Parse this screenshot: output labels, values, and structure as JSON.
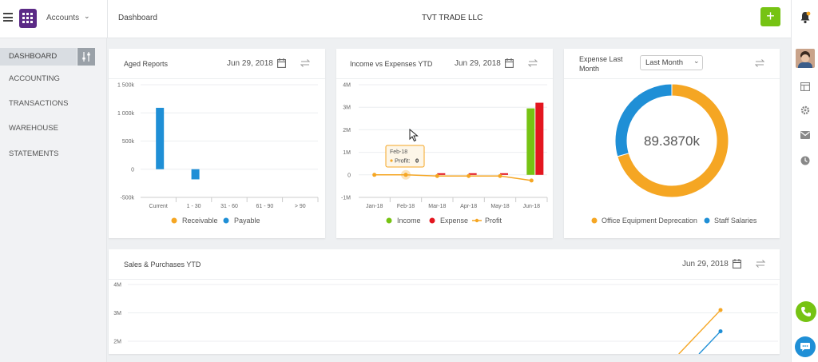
{
  "topbar": {
    "app_label": "Accounts",
    "breadcrumb": "Dashboard",
    "company": "TVT TRADE LLC",
    "add_label": "+"
  },
  "sidebar": {
    "items": [
      {
        "label": "DASHBOARD"
      },
      {
        "label": "ACCOUNTING"
      },
      {
        "label": "TRANSACTIONS"
      },
      {
        "label": "WAREHOUSE"
      },
      {
        "label": "STATEMENTS"
      }
    ]
  },
  "cards": {
    "aged": {
      "title": "Aged Reports",
      "date": "Jun 29, 2018"
    },
    "income": {
      "title": "Income vs Expenses YTD",
      "date": "Jun 29, 2018"
    },
    "expense": {
      "title_line1": "Expense Last",
      "title_line2": "Month",
      "select": "Last Month"
    },
    "sales": {
      "title": "Sales & Purchases YTD",
      "date": "Jun 29, 2018"
    }
  },
  "colors": {
    "orange": "#f5a623",
    "blue": "#1f8fd6",
    "green": "#76c313",
    "red": "#e3161f"
  },
  "chart_data": [
    {
      "type": "bar",
      "categories": [
        "Current",
        "1 - 30",
        "31 - 60",
        "61 - 90",
        "> 90"
      ],
      "yticks": [
        "1 500k",
        "1 000k",
        "500k",
        "0",
        "-500k"
      ],
      "ylim": [
        -500000,
        1500000
      ],
      "series": [
        {
          "name": "Receivable",
          "color": "#f5a623",
          "values": [
            0,
            0,
            0,
            0,
            0
          ]
        },
        {
          "name": "Payable",
          "color": "#1f8fd6",
          "values": [
            1090000,
            -180000,
            0,
            0,
            0
          ]
        }
      ],
      "legend": "bottom"
    },
    {
      "type": "bar",
      "categories": [
        "Jan-18",
        "Feb-18",
        "Mar-18",
        "Apr-18",
        "May-18",
        "Jun-18"
      ],
      "yticks": [
        "4M",
        "3M",
        "2M",
        "1M",
        "0",
        "-1M"
      ],
      "ylim": [
        -1000000,
        4000000
      ],
      "series": [
        {
          "name": "Income",
          "color": "#76c313",
          "values": [
            0,
            0,
            0,
            0,
            0,
            2950000
          ]
        },
        {
          "name": "Expense",
          "color": "#e3161f",
          "values": [
            0,
            0,
            50000,
            50000,
            50000,
            3200000
          ]
        },
        {
          "name": "Profit",
          "color": "#f5a623",
          "values": [
            0,
            0,
            -50000,
            -50000,
            -50000,
            -250000
          ]
        }
      ],
      "tooltip": {
        "title": "Feb-18",
        "label": "Profit:",
        "value": "0"
      },
      "legend": "bottom"
    },
    {
      "type": "pie",
      "center_label": "89.3870k",
      "series": [
        {
          "name": "Office Equipment Deprecation",
          "color": "#f5a623",
          "value": 63
        },
        {
          "name": "Staff Salaries",
          "color": "#1f8fd6",
          "value": 26.387
        }
      ],
      "legend": "bottom"
    },
    {
      "type": "line",
      "yticks": [
        "4M",
        "3M",
        "2M"
      ],
      "series": [
        {
          "name": "",
          "color": "#f5a623",
          "end_value": 3100000
        },
        {
          "name": "",
          "color": "#1f8fd6",
          "end_value": 2350000
        }
      ]
    }
  ]
}
